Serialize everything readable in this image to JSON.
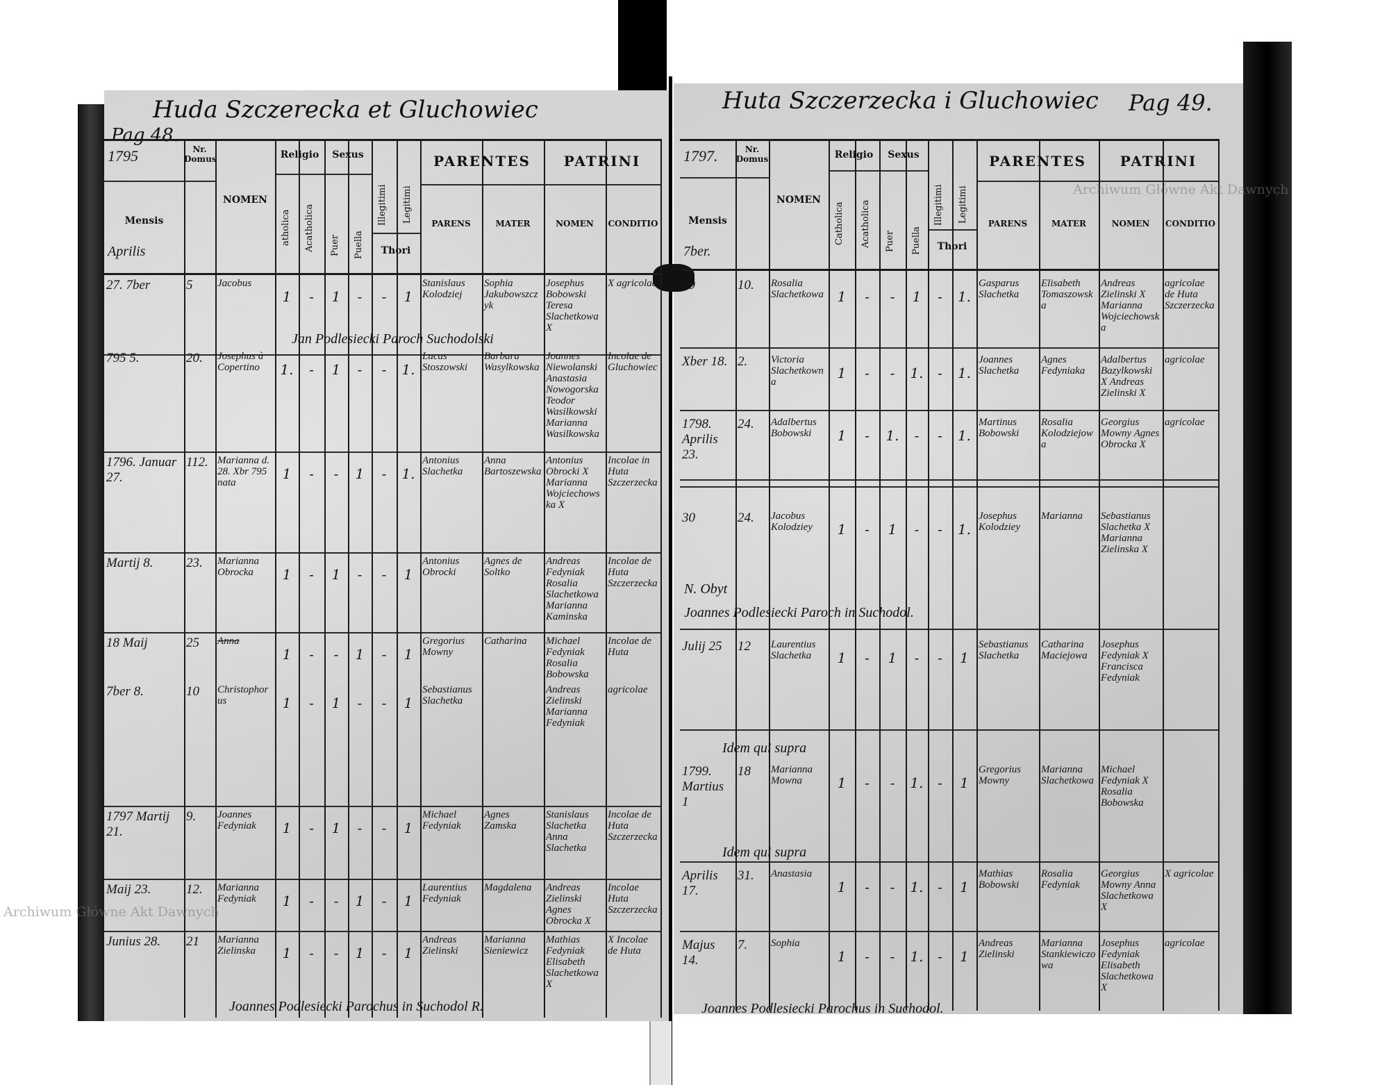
{
  "watermark": "Archiwum Główne Akt Dawnych",
  "left_page": {
    "title": "Huda Szczerecka et Gluchowiec",
    "page_label": "Pag 48.",
    "year": "1795",
    "month_header": "Aprilis",
    "headers": {
      "nr_domus": "Nr. Domus",
      "mensis": "Mensis",
      "nomen": "NOMEN",
      "religio": "Religio",
      "catholica": "atholica",
      "acatholica": "Acatholica",
      "sexus": "Sexus",
      "puer": "Puer",
      "puella": "Puella",
      "illegitimi": "Illegitimi",
      "legitimi": "Legitimi",
      "thori": "Thori",
      "parentes": "PARENTES",
      "parens": "PARENS",
      "mater": "MATER",
      "patrini": "PATRINI",
      "patrini_nomen": "NOMEN",
      "conditio": "CONDITIO"
    },
    "entries": [
      {
        "date": "27. 7ber",
        "nr": "5",
        "nomen": "Jacobus",
        "cath": "1",
        "acath": "-",
        "puer": "1",
        "puella": "-",
        "illeg": "-",
        "leg": "1",
        "parens": "Stanislaus Kolodziej",
        "mater": "Sophia Jakubowszczyk",
        "patrini": "Josephus Bobowski Teresa Slachetkowa X",
        "conditio": "X agricolae"
      },
      {
        "date": "795 5.",
        "nr": "20.",
        "nomen": "Josephus à Copertino",
        "cath": "1.",
        "acath": "-",
        "puer": "1",
        "puella": "-",
        "illeg": "-",
        "leg": "1.",
        "parens": "Lucas Stoszowski",
        "mater": "Barbara Wasylkowska",
        "patrini": "Joannes Niewolanski Anastasia Nowogorska Teodor Wasilkowski Marianna Wasilkowska",
        "conditio": "Incolae de Gluchowiec"
      },
      {
        "date": "1796. Januar 27.",
        "nr": "112.",
        "nomen": "Marianna d. 28. Xbr 795 nata",
        "cath": "1",
        "acath": "-",
        "puer": "-",
        "puella": "1",
        "illeg": "-",
        "leg": "1.",
        "parens": "Antonius Slachetka",
        "mater": "Anna Bartoszewska",
        "patrini": "Antonius Obrocki X Marianna Wojciechowska X",
        "conditio": "Incolae in Huta Szczerzecka"
      },
      {
        "date": "Martij 8.",
        "nr": "23.",
        "nomen": "Marianna Obrocka",
        "cath": "1",
        "acath": "-",
        "puer": "1",
        "puella": "-",
        "illeg": "-",
        "leg": "1",
        "parens": "Antonius Obrocki",
        "mater": "Agnes de Soltko",
        "patrini": "Andreas Fedyniak Rosalia Slachetkowa Marianna Kaminska",
        "conditio": "Incolae de Huta Szczerzecka"
      },
      {
        "date": "18 Maij",
        "nr": "25",
        "nomen": "Anna",
        "cath": "1",
        "acath": "-",
        "puer": "-",
        "puella": "1",
        "illeg": "-",
        "leg": "1",
        "parens": "Gregorius Mowny",
        "mater": "Catharina",
        "patrini": "Michael Fedyniak Rosalia Bobowska",
        "conditio": "Incolae de Huta"
      },
      {
        "date": "7ber 8.",
        "nr": "10",
        "nomen": "Christophorus",
        "cath": "1",
        "acath": "-",
        "puer": "1",
        "puella": "-",
        "illeg": "-",
        "leg": "1",
        "parens": "Sebastianus Slachetka",
        "mater": "",
        "patrini": "Andreas Zielinski Marianna Fedyniak",
        "conditio": "agricolae"
      },
      {
        "date": "1797 Martij 21.",
        "nr": "9.",
        "nomen": "Joannes Fedyniak",
        "cath": "1",
        "acath": "-",
        "puer": "1",
        "puella": "-",
        "illeg": "-",
        "leg": "1",
        "parens": "Michael Fedyniak",
        "mater": "Agnes Zamska",
        "patrini": "Stanislaus Slachetka Anna Slachetka",
        "conditio": "Incolae de Huta Szczerzecka"
      },
      {
        "date": "Maij 23.",
        "nr": "12.",
        "nomen": "Marianna Fedyniak",
        "cath": "1",
        "acath": "-",
        "puer": "-",
        "puella": "1",
        "illeg": "-",
        "leg": "1",
        "parens": "Laurentius Fedyniak",
        "mater": "Magdalena",
        "patrini": "Andreas Zielinski Agnes Obrocka X",
        "conditio": "Incolae Huta Szczerzecka"
      },
      {
        "date": "Junius 28.",
        "nr": "21",
        "nomen": "Marianna Zielinska",
        "cath": "1",
        "acath": "-",
        "puer": "-",
        "puella": "1",
        "illeg": "-",
        "leg": "1",
        "parens": "Andreas Zielinski",
        "mater": "Marianna Sieniewicz",
        "patrini": "Mathias Fedyniak Elisabeth Slachetkowa X",
        "conditio": "X Incolae de Huta"
      }
    ],
    "notes": [
      "Jan Podlesiecki Paroch Suchodolski",
      "Joannes Podlesiecki Parochus in Suchodol R."
    ]
  },
  "right_page": {
    "title": "Huta Szczerzecka i Gluchowiec",
    "page_label": "Pag 49.",
    "year": "1797.",
    "month_header": "7ber.",
    "headers": {
      "nr_domus": "Nr. Domus",
      "mensis": "Mensis",
      "nomen": "NOMEN",
      "religio": "Religio",
      "catholica": "Catholica",
      "acatholica": "Acatholica",
      "sexus": "Sexus",
      "puer": "Puer",
      "puella": "Puella",
      "illegitimi": "Illegitimi",
      "legitimi": "Legitimi",
      "thori": "Thori",
      "parentes": "PARENTES",
      "parens": "PARENS",
      "mater": "MATER",
      "patrini": "PATRINI",
      "patrini_nomen": "NOMEN",
      "conditio": "CONDITIO"
    },
    "entries": [
      {
        "date": "19",
        "nr": "10.",
        "nomen": "Rosalia Slachetkowa",
        "cath": "1",
        "acath": "-",
        "puer": "-",
        "puella": "1",
        "illeg": "-",
        "leg": "1.",
        "parens": "Gasparus Slachetka",
        "mater": "Elisabeth Tomaszowska",
        "patrini": "Andreas Zielinski X Marianna Wojciechowska",
        "conditio": "agricolae de Huta Szczerzecka"
      },
      {
        "date": "Xber 18.",
        "nr": "2.",
        "nomen": "Victoria Slachetkowna",
        "cath": "1",
        "acath": "-",
        "puer": "-",
        "puella": "1.",
        "illeg": "-",
        "leg": "1.",
        "parens": "Joannes Slachetka",
        "mater": "Agnes Fedyniaka",
        "patrini": "Adalbertus Bazylkowski X Andreas Zielinski X",
        "conditio": "agricolae"
      },
      {
        "date": "1798. Aprilis 23.",
        "nr": "24.",
        "nomen": "Adalbertus Bobowski",
        "cath": "1",
        "acath": "-",
        "puer": "1.",
        "puella": "-",
        "illeg": "-",
        "leg": "1.",
        "parens": "Martinus Bobowski",
        "mater": "Rosalia Kolodziejowa",
        "patrini": "Georgius Mowny Agnes Obrocka X",
        "conditio": "agricolae"
      },
      {
        "date": "30",
        "nr": "24.",
        "nomen": "Jacobus Kolodziey",
        "cath": "1",
        "acath": "-",
        "puer": "1",
        "puella": "-",
        "illeg": "-",
        "leg": "1.",
        "parens": "Josephus Kolodziey",
        "mater": "Marianna",
        "patrini": "Sebastianus Slachetka X Marianna Zielinska X",
        "conditio": ""
      },
      {
        "date": "Julij 25",
        "nr": "12",
        "nomen": "Laurentius Slachetka",
        "cath": "1",
        "acath": "-",
        "puer": "1",
        "puella": "-",
        "illeg": "-",
        "leg": "1",
        "parens": "Sebastianus Slachetka",
        "mater": "Catharina Maciejowa",
        "patrini": "Josephus Fedyniak X Francisca Fedyniak",
        "conditio": ""
      },
      {
        "date": "1799. Martius 1",
        "nr": "18",
        "nomen": "Marianna Mowna",
        "cath": "1",
        "acath": "-",
        "puer": "-",
        "puella": "1.",
        "illeg": "-",
        "leg": "1",
        "parens": "Gregorius Mowny",
        "mater": "Marianna Slachetkowa",
        "patrini": "Michael Fedyniak X Rosalia Bobowska",
        "conditio": ""
      },
      {
        "date": "Aprilis 17.",
        "nr": "31.",
        "nomen": "Anastasia",
        "cath": "1",
        "acath": "-",
        "puer": "-",
        "puella": "1.",
        "illeg": "-",
        "leg": "1",
        "parens": "Mathias Bobowski",
        "mater": "Rosalia Fedyniak",
        "patrini": "Georgius Mowny Anna Slachetkowa X",
        "conditio": "X agricolae"
      },
      {
        "date": "Majus 14.",
        "nr": "7.",
        "nomen": "Sophia",
        "cath": "1",
        "acath": "-",
        "puer": "-",
        "puella": "1.",
        "illeg": "-",
        "leg": "1",
        "parens": "Andreas Zielinski",
        "mater": "Marianna Stankiewiczowa",
        "patrini": "Josephus Fedyniak Elisabeth Slachetkowa X",
        "conditio": "agricolae"
      }
    ],
    "notes": [
      "N. Obyt",
      "Joannes Podlesiecki Paroch in Suchodol.",
      "Idem qui supra",
      "Idem qui supra",
      "Joannes Podlesiecki Parochus in Suchodol."
    ]
  }
}
